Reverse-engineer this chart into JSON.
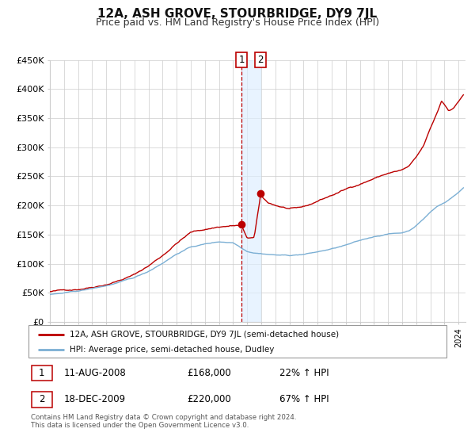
{
  "title": "12A, ASH GROVE, STOURBRIDGE, DY9 7JL",
  "subtitle": "Price paid vs. HM Land Registry's House Price Index (HPI)",
  "ylim": [
    0,
    450000
  ],
  "yticks": [
    0,
    50000,
    100000,
    150000,
    200000,
    250000,
    300000,
    350000,
    400000,
    450000
  ],
  "ytick_labels": [
    "£0",
    "£50K",
    "£100K",
    "£150K",
    "£200K",
    "£250K",
    "£300K",
    "£350K",
    "£400K",
    "£450K"
  ],
  "xlim_start": 1995.0,
  "xlim_end": 2024.5,
  "red_line_color": "#bb0000",
  "blue_line_color": "#7bafd4",
  "marker_color": "#bb0000",
  "point1_x": 2008.61,
  "point1_y": 168000,
  "point2_x": 2009.96,
  "point2_y": 220000,
  "vline_x": 2008.61,
  "shaded_x_start": 2008.61,
  "shaded_x_end": 2009.96,
  "legend_label_red": "12A, ASH GROVE, STOURBRIDGE, DY9 7JL (semi-detached house)",
  "legend_label_blue": "HPI: Average price, semi-detached house, Dudley",
  "table_row1": [
    "1",
    "11-AUG-2008",
    "£168,000",
    "22% ↑ HPI"
  ],
  "table_row2": [
    "2",
    "18-DEC-2009",
    "£220,000",
    "67% ↑ HPI"
  ],
  "footer_text": "Contains HM Land Registry data © Crown copyright and database right 2024.\nThis data is licensed under the Open Government Licence v3.0.",
  "background_color": "#ffffff",
  "plot_bg_color": "#ffffff",
  "grid_color": "#cccccc",
  "title_fontsize": 11,
  "subtitle_fontsize": 9
}
